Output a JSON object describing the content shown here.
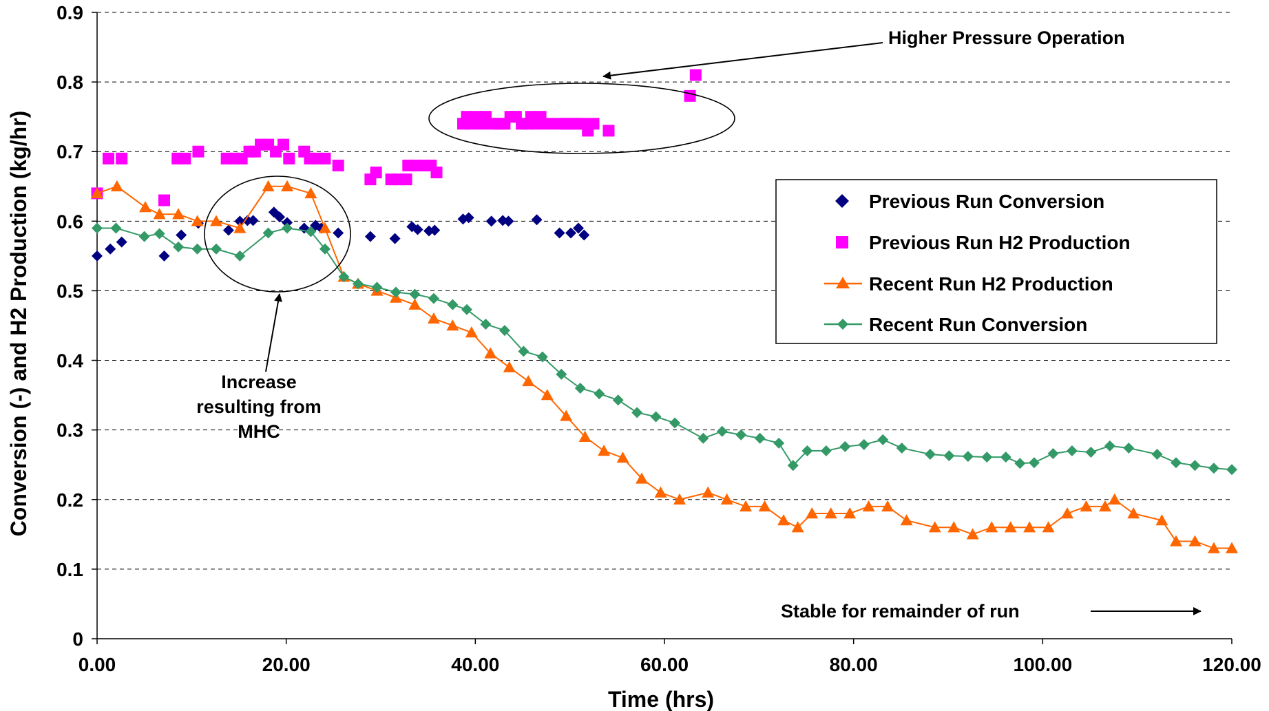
{
  "chart_data": {
    "type": "scatter",
    "title": "",
    "xlabel": "Time (hrs)",
    "ylabel": "Conversion (-) and H2 Production (kg/hr)",
    "xlim": [
      0,
      120
    ],
    "ylim": [
      0,
      0.9
    ],
    "x_ticks": [
      0,
      20,
      40,
      60,
      80,
      100,
      120
    ],
    "x_tick_labels": [
      "0.00",
      "20.00",
      "40.00",
      "60.00",
      "80.00",
      "100.00",
      "120.00"
    ],
    "y_ticks": [
      0,
      0.1,
      0.2,
      0.3,
      0.4,
      0.5,
      0.6,
      0.7,
      0.8,
      0.9
    ],
    "y_tick_labels": [
      "0",
      "0.1",
      "0.2",
      "0.3",
      "0.4",
      "0.5",
      "0.6",
      "0.7",
      "0.8",
      "0.9"
    ],
    "grid": "horizontal dashed",
    "legend_position": "right",
    "series": [
      {
        "name": "Previous Run Conversion",
        "marker": "diamond",
        "line": false,
        "color": "#000080",
        "points": [
          [
            0,
            0.55
          ],
          [
            1.4,
            0.56
          ],
          [
            2.6,
            0.57
          ],
          [
            7.1,
            0.55
          ],
          [
            8.9,
            0.58
          ],
          [
            10.7,
            0.597
          ],
          [
            13.9,
            0.587
          ],
          [
            15.1,
            0.6
          ],
          [
            15.9,
            0.601
          ],
          [
            16.5,
            0.601
          ],
          [
            18.7,
            0.613
          ],
          [
            19.3,
            0.606
          ],
          [
            20.1,
            0.598
          ],
          [
            21.9,
            0.59
          ],
          [
            23.1,
            0.594
          ],
          [
            23.7,
            0.59
          ],
          [
            25.5,
            0.583
          ],
          [
            28.9,
            0.578
          ],
          [
            31.5,
            0.575
          ],
          [
            33.3,
            0.592
          ],
          [
            33.9,
            0.588
          ],
          [
            35.1,
            0.586
          ],
          [
            35.7,
            0.587
          ],
          [
            38.7,
            0.603
          ],
          [
            39.3,
            0.605
          ],
          [
            41.7,
            0.6
          ],
          [
            42.9,
            0.601
          ],
          [
            43.5,
            0.6
          ],
          [
            46.5,
            0.602
          ],
          [
            48.9,
            0.583
          ],
          [
            50.1,
            0.583
          ],
          [
            50.9,
            0.59
          ],
          [
            51.5,
            0.58
          ]
        ]
      },
      {
        "name": "Previous Run H2 Production",
        "marker": "square",
        "line": false,
        "color": "#ff00ff",
        "points": [
          [
            0,
            0.64
          ],
          [
            1.2,
            0.69
          ],
          [
            2.6,
            0.69
          ],
          [
            7.1,
            0.63
          ],
          [
            8.5,
            0.69
          ],
          [
            9.3,
            0.69
          ],
          [
            10.7,
            0.7
          ],
          [
            13.7,
            0.69
          ],
          [
            14.5,
            0.69
          ],
          [
            15.3,
            0.69
          ],
          [
            16.1,
            0.7
          ],
          [
            16.7,
            0.7
          ],
          [
            17.3,
            0.71
          ],
          [
            18.1,
            0.71
          ],
          [
            18.9,
            0.7
          ],
          [
            19.7,
            0.71
          ],
          [
            20.3,
            0.69
          ],
          [
            21.9,
            0.7
          ],
          [
            22.5,
            0.69
          ],
          [
            23.3,
            0.69
          ],
          [
            24.1,
            0.69
          ],
          [
            25.5,
            0.68
          ],
          [
            28.9,
            0.66
          ],
          [
            29.5,
            0.67
          ],
          [
            31.1,
            0.66
          ],
          [
            31.9,
            0.66
          ],
          [
            32.7,
            0.66
          ],
          [
            32.9,
            0.68
          ],
          [
            33.7,
            0.68
          ],
          [
            34.5,
            0.68
          ],
          [
            35.3,
            0.68
          ],
          [
            35.9,
            0.67
          ],
          [
            38.7,
            0.74
          ],
          [
            39.1,
            0.75
          ],
          [
            39.5,
            0.74
          ],
          [
            40.1,
            0.75
          ],
          [
            40.7,
            0.74
          ],
          [
            41.1,
            0.75
          ],
          [
            41.9,
            0.74
          ],
          [
            42.5,
            0.74
          ],
          [
            43.1,
            0.74
          ],
          [
            43.7,
            0.75
          ],
          [
            44.3,
            0.75
          ],
          [
            44.9,
            0.74
          ],
          [
            45.5,
            0.74
          ],
          [
            45.9,
            0.75
          ],
          [
            46.5,
            0.74
          ],
          [
            46.9,
            0.75
          ],
          [
            47.7,
            0.74
          ],
          [
            48.9,
            0.74
          ],
          [
            49.5,
            0.74
          ],
          [
            50.1,
            0.74
          ],
          [
            50.7,
            0.74
          ],
          [
            51.3,
            0.74
          ],
          [
            51.9,
            0.73
          ],
          [
            52.5,
            0.74
          ],
          [
            54.1,
            0.73
          ],
          [
            62.7,
            0.78
          ],
          [
            63.3,
            0.81
          ]
        ]
      },
      {
        "name": "Recent Run H2 Production",
        "marker": "triangle",
        "line": true,
        "color": "#ff6600",
        "points": [
          [
            0,
            0.64
          ],
          [
            2.1,
            0.65
          ],
          [
            5.1,
            0.62
          ],
          [
            6.6,
            0.61
          ],
          [
            8.6,
            0.61
          ],
          [
            10.6,
            0.6
          ],
          [
            12.6,
            0.6
          ],
          [
            15.1,
            0.59
          ],
          [
            18.1,
            0.65
          ],
          [
            20.1,
            0.65
          ],
          [
            22.6,
            0.64
          ],
          [
            24.1,
            0.59
          ],
          [
            26.1,
            0.52
          ],
          [
            27.6,
            0.51
          ],
          [
            29.6,
            0.5
          ],
          [
            31.6,
            0.49
          ],
          [
            33.6,
            0.48
          ],
          [
            35.6,
            0.46
          ],
          [
            37.6,
            0.45
          ],
          [
            39.6,
            0.44
          ],
          [
            41.6,
            0.41
          ],
          [
            43.6,
            0.39
          ],
          [
            45.6,
            0.37
          ],
          [
            47.6,
            0.35
          ],
          [
            49.6,
            0.32
          ],
          [
            51.6,
            0.29
          ],
          [
            53.6,
            0.27
          ],
          [
            55.6,
            0.26
          ],
          [
            57.6,
            0.23
          ],
          [
            59.6,
            0.21
          ],
          [
            61.6,
            0.2
          ],
          [
            64.6,
            0.21
          ],
          [
            66.6,
            0.2
          ],
          [
            68.6,
            0.19
          ],
          [
            70.6,
            0.19
          ],
          [
            72.6,
            0.17
          ],
          [
            74.1,
            0.16
          ],
          [
            75.6,
            0.18
          ],
          [
            77.6,
            0.18
          ],
          [
            79.6,
            0.18
          ],
          [
            81.6,
            0.19
          ],
          [
            83.6,
            0.19
          ],
          [
            85.6,
            0.17
          ],
          [
            88.6,
            0.16
          ],
          [
            90.6,
            0.16
          ],
          [
            92.6,
            0.15
          ],
          [
            94.6,
            0.16
          ],
          [
            96.6,
            0.16
          ],
          [
            98.6,
            0.16
          ],
          [
            100.6,
            0.16
          ],
          [
            102.6,
            0.18
          ],
          [
            104.6,
            0.19
          ],
          [
            106.6,
            0.19
          ],
          [
            107.6,
            0.2
          ],
          [
            109.6,
            0.18
          ],
          [
            112.6,
            0.17
          ],
          [
            114.1,
            0.14
          ],
          [
            116.1,
            0.14
          ],
          [
            118.1,
            0.13
          ],
          [
            120.0,
            0.13
          ]
        ]
      },
      {
        "name": "Recent Run Conversion",
        "marker": "diamond",
        "line": true,
        "color": "#339966",
        "points": [
          [
            0,
            0.59
          ],
          [
            2.0,
            0.59
          ],
          [
            5.0,
            0.578
          ],
          [
            6.6,
            0.582
          ],
          [
            8.6,
            0.563
          ],
          [
            10.6,
            0.56
          ],
          [
            12.6,
            0.56
          ],
          [
            15.1,
            0.55
          ],
          [
            18.1,
            0.583
          ],
          [
            20.1,
            0.59
          ],
          [
            22.6,
            0.585
          ],
          [
            24.1,
            0.56
          ],
          [
            26.1,
            0.52
          ],
          [
            27.6,
            0.51
          ],
          [
            29.6,
            0.505
          ],
          [
            31.6,
            0.498
          ],
          [
            33.6,
            0.495
          ],
          [
            35.6,
            0.489
          ],
          [
            37.6,
            0.48
          ],
          [
            39.1,
            0.473
          ],
          [
            41.1,
            0.452
          ],
          [
            43.1,
            0.443
          ],
          [
            45.1,
            0.413
          ],
          [
            47.1,
            0.405
          ],
          [
            49.1,
            0.38
          ],
          [
            51.1,
            0.36
          ],
          [
            53.1,
            0.352
          ],
          [
            55.1,
            0.343
          ],
          [
            57.1,
            0.325
          ],
          [
            59.1,
            0.319
          ],
          [
            61.1,
            0.31
          ],
          [
            64.1,
            0.288
          ],
          [
            66.1,
            0.298
          ],
          [
            68.1,
            0.293
          ],
          [
            70.1,
            0.288
          ],
          [
            72.1,
            0.281
          ],
          [
            73.6,
            0.249
          ],
          [
            75.1,
            0.27
          ],
          [
            77.1,
            0.27
          ],
          [
            79.1,
            0.276
          ],
          [
            81.1,
            0.279
          ],
          [
            83.1,
            0.286
          ],
          [
            85.1,
            0.274
          ],
          [
            88.1,
            0.265
          ],
          [
            90.1,
            0.263
          ],
          [
            92.1,
            0.262
          ],
          [
            94.1,
            0.261
          ],
          [
            96.1,
            0.261
          ],
          [
            97.6,
            0.252
          ],
          [
            99.1,
            0.253
          ],
          [
            101.1,
            0.266
          ],
          [
            103.1,
            0.27
          ],
          [
            105.1,
            0.268
          ],
          [
            107.1,
            0.277
          ],
          [
            109.1,
            0.274
          ],
          [
            112.1,
            0.265
          ],
          [
            114.1,
            0.253
          ],
          [
            116.1,
            0.249
          ],
          [
            118.1,
            0.245
          ],
          [
            120.0,
            0.243
          ]
        ]
      }
    ],
    "annotations": [
      {
        "text": "Higher Pressure Operation",
        "arrow_to": [
          53.5,
          0.809
        ]
      },
      {
        "text_lines": [
          "Increase",
          "resulting from",
          "MHC"
        ],
        "arrow_to": [
          19.3,
          0.495
        ]
      },
      {
        "text": "Stable for remainder of run",
        "arrow": "right"
      }
    ],
    "circled_regions": [
      {
        "center": [
          48,
          0.745
        ],
        "note": "high pressure points"
      },
      {
        "center": [
          19,
          0.585
        ],
        "note": "MHC increase"
      }
    ]
  }
}
